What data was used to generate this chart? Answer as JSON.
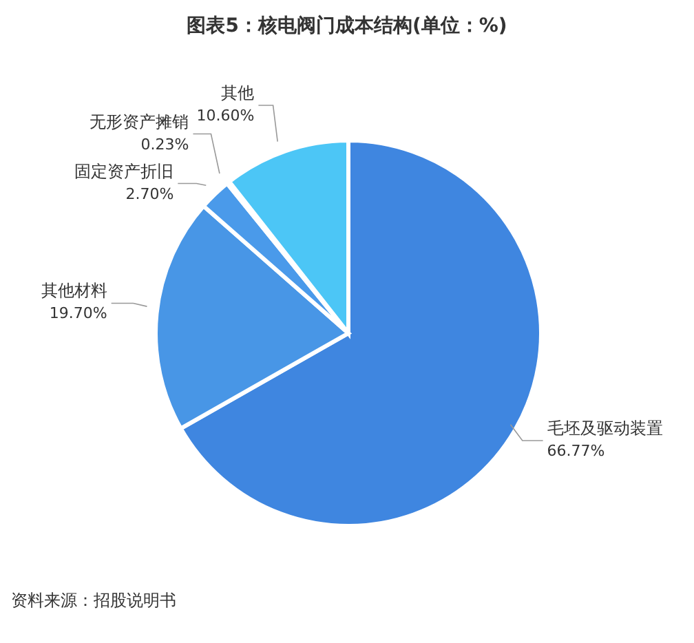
{
  "chart_data": {
    "type": "pie",
    "title": "图表5：核电阀门成本结构(单位：%)",
    "categories": [
      "毛坯及驱动装置",
      "其他材料",
      "固定资产折旧",
      "无形资产摊销",
      "其他"
    ],
    "values": [
      66.77,
      19.7,
      2.7,
      0.23,
      10.6
    ],
    "value_labels": [
      "66.77%",
      "19.70%",
      "2.70%",
      "0.23%",
      "10.60%"
    ],
    "colors": [
      "#3f86e0",
      "#4896e6",
      "#4a9aea",
      "#6fb4f0",
      "#4cc6f6"
    ],
    "annotations": [
      "资料来源：招股说明书"
    ]
  }
}
